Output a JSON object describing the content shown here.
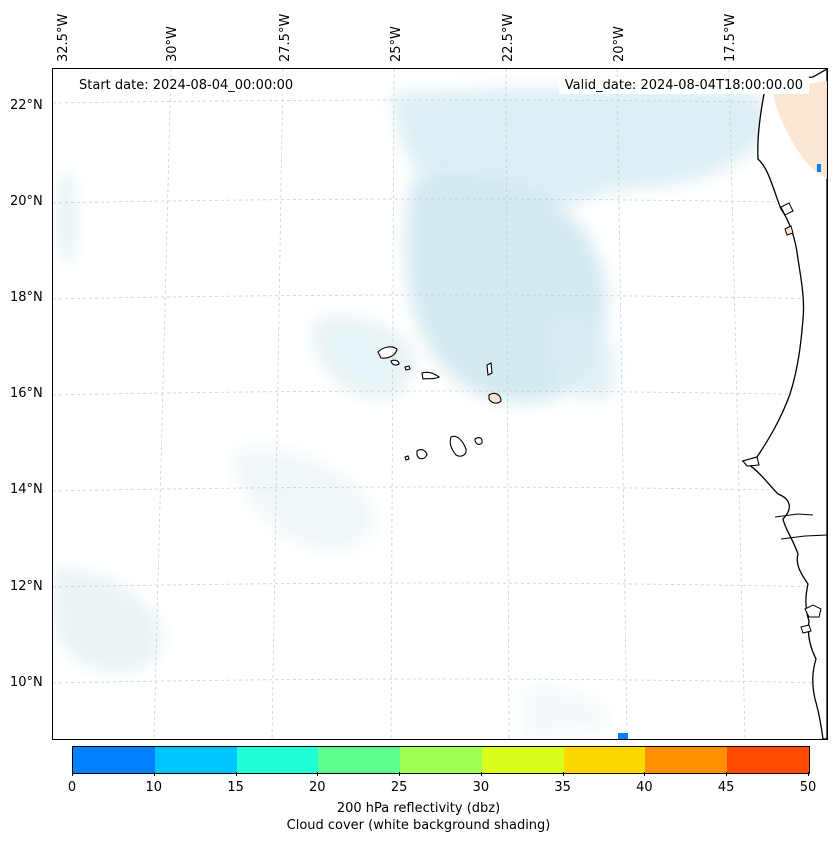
{
  "map": {
    "start_date": "Start date: 2024-08-04_00:00:00",
    "valid_date": "Valid_date: 2024-08-04T18:00:00.00",
    "lon_labels": [
      "32.5°W",
      "30°W",
      "27.5°W",
      "25°W",
      "22.5°W",
      "20°W",
      "17.5°W"
    ],
    "lat_labels": [
      "22°N",
      "20°N",
      "18°N",
      "16°N",
      "14°N",
      "12°N",
      "10°N"
    ],
    "ocean_color": "#ffffff",
    "cloud_color": "#d6ecf2",
    "land_color": "#fbe3cf",
    "coast_color": "#000000"
  },
  "colorbar": {
    "colors": [
      "#0080ff",
      "#00c4ff",
      "#22ffd6",
      "#5eff8e",
      "#a0ff52",
      "#d8ff1e",
      "#ffd800",
      "#ff9000",
      "#ff4a00"
    ],
    "ticks": [
      "0",
      "10",
      "15",
      "20",
      "25",
      "30",
      "35",
      "40",
      "45",
      "50"
    ],
    "label": "200 hPa reflectivity (dbz)",
    "sublabel": "Cloud cover (white background shading)"
  }
}
